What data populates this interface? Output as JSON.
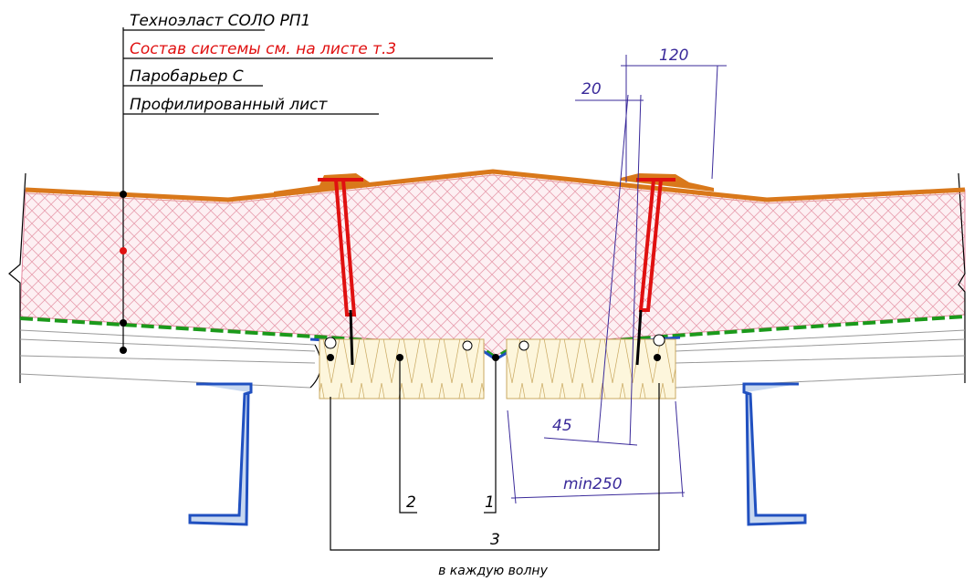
{
  "layers": [
    "Техноэласт СОЛО РП1",
    "Состав системы см. на листе т.3",
    "Паробарьер С",
    "Профилированный лист"
  ],
  "dimensions": {
    "overlap": 120,
    "edge": 20,
    "angle": 45,
    "spacing": "min250"
  },
  "callouts": [
    "1",
    "2",
    "3"
  ],
  "caption": "в каждую волну"
}
